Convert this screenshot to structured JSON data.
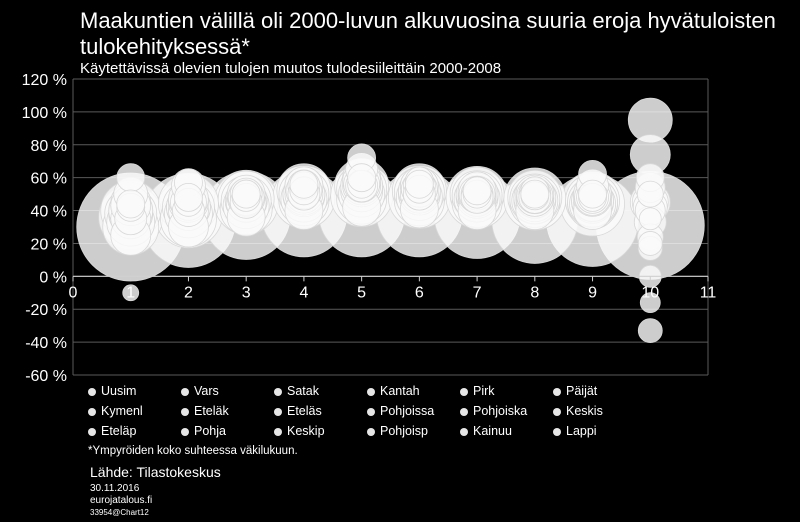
{
  "chart_data": {
    "type": "scatter",
    "title": "Maakuntien välillä oli 2000-luvun alkuvuosina suuria eroja hyvätuloisten tulokehityksessä*",
    "subtitle": "Käytettävissä olevien tulojen muutos tulodesiileittäin 2000-2008",
    "xlim": [
      0,
      11
    ],
    "ylim": [
      -60,
      120
    ],
    "x_ticks": [
      "0",
      "1",
      "2",
      "3",
      "4",
      "5",
      "6",
      "7",
      "8",
      "9",
      "10",
      "11"
    ],
    "y_ticks": [
      "-60 %",
      "-40 %",
      "-20 %",
      "0 %",
      "20 %",
      "40 %",
      "60 %",
      "80 %",
      "100 %",
      "120 %"
    ],
    "grid": true,
    "legend_position": "bottom",
    "series": [
      {
        "name": "Uusim",
        "points": [
          [
            1,
            30,
            54
          ],
          [
            2,
            34,
            47
          ],
          [
            3,
            37,
            44
          ],
          [
            4,
            38,
            43
          ],
          [
            5,
            38,
            43
          ],
          [
            6,
            38,
            43
          ],
          [
            7,
            37,
            43
          ],
          [
            8,
            34,
            43
          ],
          [
            9,
            34,
            46
          ],
          [
            10,
            31,
            54
          ]
        ]
      },
      {
        "name": "Vars",
        "points": [
          [
            1,
            36,
            32
          ],
          [
            2,
            38,
            34
          ],
          [
            3,
            45,
            32
          ],
          [
            4,
            48,
            31
          ],
          [
            5,
            49,
            31
          ],
          [
            6,
            48,
            31
          ],
          [
            7,
            48,
            31
          ],
          [
            8,
            47,
            31
          ],
          [
            9,
            44,
            32
          ],
          [
            10,
            45,
            20
          ]
        ]
      },
      {
        "name": "Satak",
        "points": [
          [
            1,
            30,
            28
          ],
          [
            2,
            35,
            28
          ],
          [
            3,
            41,
            26
          ],
          [
            4,
            46,
            25
          ],
          [
            5,
            47,
            25
          ],
          [
            6,
            46,
            25
          ],
          [
            7,
            45,
            25
          ],
          [
            8,
            45,
            25
          ],
          [
            9,
            44,
            25
          ],
          [
            10,
            33,
            16
          ]
        ]
      },
      {
        "name": "Kantah",
        "points": [
          [
            1,
            35,
            20
          ],
          [
            2,
            40,
            20
          ],
          [
            3,
            45,
            20
          ],
          [
            4,
            50,
            19
          ],
          [
            5,
            55,
            19
          ],
          [
            6,
            50,
            19
          ],
          [
            7,
            48,
            19
          ],
          [
            8,
            47,
            19
          ],
          [
            9,
            45,
            19
          ],
          [
            10,
            17,
            12
          ]
        ]
      },
      {
        "name": "Pirk",
        "points": [
          [
            1,
            40,
            30
          ],
          [
            2,
            44,
            30
          ],
          [
            3,
            47,
            28
          ],
          [
            4,
            52,
            27
          ],
          [
            5,
            55,
            27
          ],
          [
            6,
            52,
            27
          ],
          [
            7,
            50,
            27
          ],
          [
            8,
            48,
            27
          ],
          [
            9,
            46,
            27
          ],
          [
            10,
            95,
            22
          ]
        ]
      },
      {
        "name": "Päijät",
        "points": [
          [
            1,
            33,
            24
          ],
          [
            2,
            38,
            24
          ],
          [
            3,
            43,
            23
          ],
          [
            4,
            47,
            23
          ],
          [
            5,
            50,
            23
          ],
          [
            6,
            48,
            23
          ],
          [
            7,
            47,
            23
          ],
          [
            8,
            46,
            23
          ],
          [
            9,
            44,
            23
          ],
          [
            10,
            74,
            20
          ]
        ]
      },
      {
        "name": "Kymenl",
        "points": [
          [
            1,
            38,
            22
          ],
          [
            2,
            42,
            22
          ],
          [
            3,
            46,
            21
          ],
          [
            4,
            49,
            21
          ],
          [
            5,
            52,
            21
          ],
          [
            6,
            50,
            21
          ],
          [
            7,
            48,
            21
          ],
          [
            8,
            46,
            21
          ],
          [
            9,
            45,
            21
          ],
          [
            10,
            42,
            17
          ]
        ]
      },
      {
        "name": "Eteläk",
        "points": [
          [
            1,
            25,
            20
          ],
          [
            2,
            30,
            20
          ],
          [
            3,
            36,
            19
          ],
          [
            4,
            40,
            19
          ],
          [
            5,
            42,
            19
          ],
          [
            6,
            41,
            19
          ],
          [
            7,
            40,
            19
          ],
          [
            8,
            40,
            19
          ],
          [
            9,
            40,
            19
          ],
          [
            10,
            24,
            13
          ]
        ]
      },
      {
        "name": "Eteläs",
        "points": [
          [
            1,
            45,
            20
          ],
          [
            2,
            45,
            20
          ],
          [
            3,
            48,
            19
          ],
          [
            4,
            55,
            19
          ],
          [
            5,
            60,
            19
          ],
          [
            6,
            55,
            19
          ],
          [
            7,
            50,
            19
          ],
          [
            8,
            48,
            19
          ],
          [
            9,
            48,
            19
          ],
          [
            10,
            60,
            14
          ]
        ]
      },
      {
        "name": "Pohjoissa",
        "points": [
          [
            1,
            50,
            17
          ],
          [
            2,
            55,
            17
          ],
          [
            3,
            50,
            16
          ],
          [
            4,
            55,
            16
          ],
          [
            5,
            65,
            16
          ],
          [
            6,
            55,
            16
          ],
          [
            7,
            50,
            16
          ],
          [
            8,
            50,
            16
          ],
          [
            9,
            55,
            16
          ],
          [
            10,
            50,
            13
          ]
        ]
      },
      {
        "name": "Pohjoiska",
        "points": [
          [
            1,
            40,
            22
          ],
          [
            2,
            42,
            22
          ],
          [
            3,
            46,
            21
          ],
          [
            4,
            50,
            21
          ],
          [
            5,
            55,
            21
          ],
          [
            6,
            52,
            21
          ],
          [
            7,
            50,
            21
          ],
          [
            8,
            48,
            21
          ],
          [
            9,
            46,
            21
          ],
          [
            10,
            40,
            15
          ]
        ]
      },
      {
        "name": "Keskis",
        "points": [
          [
            1,
            43,
            20
          ],
          [
            2,
            47,
            20
          ],
          [
            3,
            50,
            19
          ],
          [
            4,
            55,
            19
          ],
          [
            5,
            58,
            19
          ],
          [
            6,
            55,
            19
          ],
          [
            7,
            52,
            19
          ],
          [
            8,
            50,
            19
          ],
          [
            9,
            50,
            19
          ],
          [
            10,
            54,
            15
          ]
        ]
      },
      {
        "name": "Eteläp",
        "points": [
          [
            1,
            35,
            16
          ],
          [
            2,
            40,
            16
          ],
          [
            3,
            45,
            16
          ],
          [
            4,
            50,
            16
          ],
          [
            5,
            55,
            16
          ],
          [
            6,
            50,
            16
          ],
          [
            7,
            48,
            16
          ],
          [
            8,
            48,
            16
          ],
          [
            9,
            48,
            16
          ],
          [
            10,
            -16,
            10
          ]
        ]
      },
      {
        "name": "Pohja",
        "points": [
          [
            1,
            60,
            14
          ],
          [
            2,
            57,
            14
          ],
          [
            3,
            50,
            14
          ],
          [
            4,
            55,
            14
          ],
          [
            5,
            72,
            14
          ],
          [
            6,
            58,
            14
          ],
          [
            7,
            52,
            14
          ],
          [
            8,
            52,
            14
          ],
          [
            9,
            62,
            14
          ],
          [
            10,
            0,
            11
          ]
        ]
      },
      {
        "name": "Keskip",
        "points": [
          [
            1,
            42,
            14
          ],
          [
            2,
            45,
            14
          ],
          [
            3,
            48,
            14
          ],
          [
            4,
            52,
            14
          ],
          [
            5,
            56,
            14
          ],
          [
            6,
            53,
            14
          ],
          [
            7,
            50,
            14
          ],
          [
            8,
            49,
            14
          ],
          [
            9,
            48,
            14
          ],
          [
            10,
            35,
            11
          ]
        ]
      },
      {
        "name": "Pohjoisp",
        "points": [
          [
            1,
            38,
            26
          ],
          [
            2,
            42,
            26
          ],
          [
            3,
            46,
            25
          ],
          [
            4,
            50,
            25
          ],
          [
            5,
            53,
            25
          ],
          [
            6,
            51,
            25
          ],
          [
            7,
            49,
            25
          ],
          [
            8,
            47,
            25
          ],
          [
            9,
            45,
            25
          ],
          [
            10,
            45,
            18
          ]
        ]
      },
      {
        "name": "Kainuu",
        "points": [
          [
            1,
            44,
            14
          ],
          [
            2,
            48,
            14
          ],
          [
            3,
            50,
            14
          ],
          [
            4,
            56,
            14
          ],
          [
            5,
            60,
            14
          ],
          [
            6,
            56,
            14
          ],
          [
            7,
            52,
            14
          ],
          [
            8,
            50,
            14
          ],
          [
            9,
            50,
            14
          ],
          [
            10,
            -33,
            12
          ]
        ]
      },
      {
        "name": "Lappi",
        "points": [
          [
            1,
            -10,
            8
          ],
          [
            2,
            45,
            18
          ],
          [
            3,
            48,
            18
          ],
          [
            4,
            52,
            18
          ],
          [
            5,
            56,
            18
          ],
          [
            6,
            53,
            18
          ],
          [
            7,
            50,
            18
          ],
          [
            8,
            49,
            18
          ],
          [
            9,
            48,
            18
          ],
          [
            10,
            20,
            12
          ]
        ]
      }
    ]
  },
  "note": "*Ympyröiden koko suhteessa väkilukuun.",
  "source": "Lähde: Tilastokeskus",
  "date": "30.11.2016",
  "site": "eurojatalous.fi",
  "code": "33954@Chart12"
}
